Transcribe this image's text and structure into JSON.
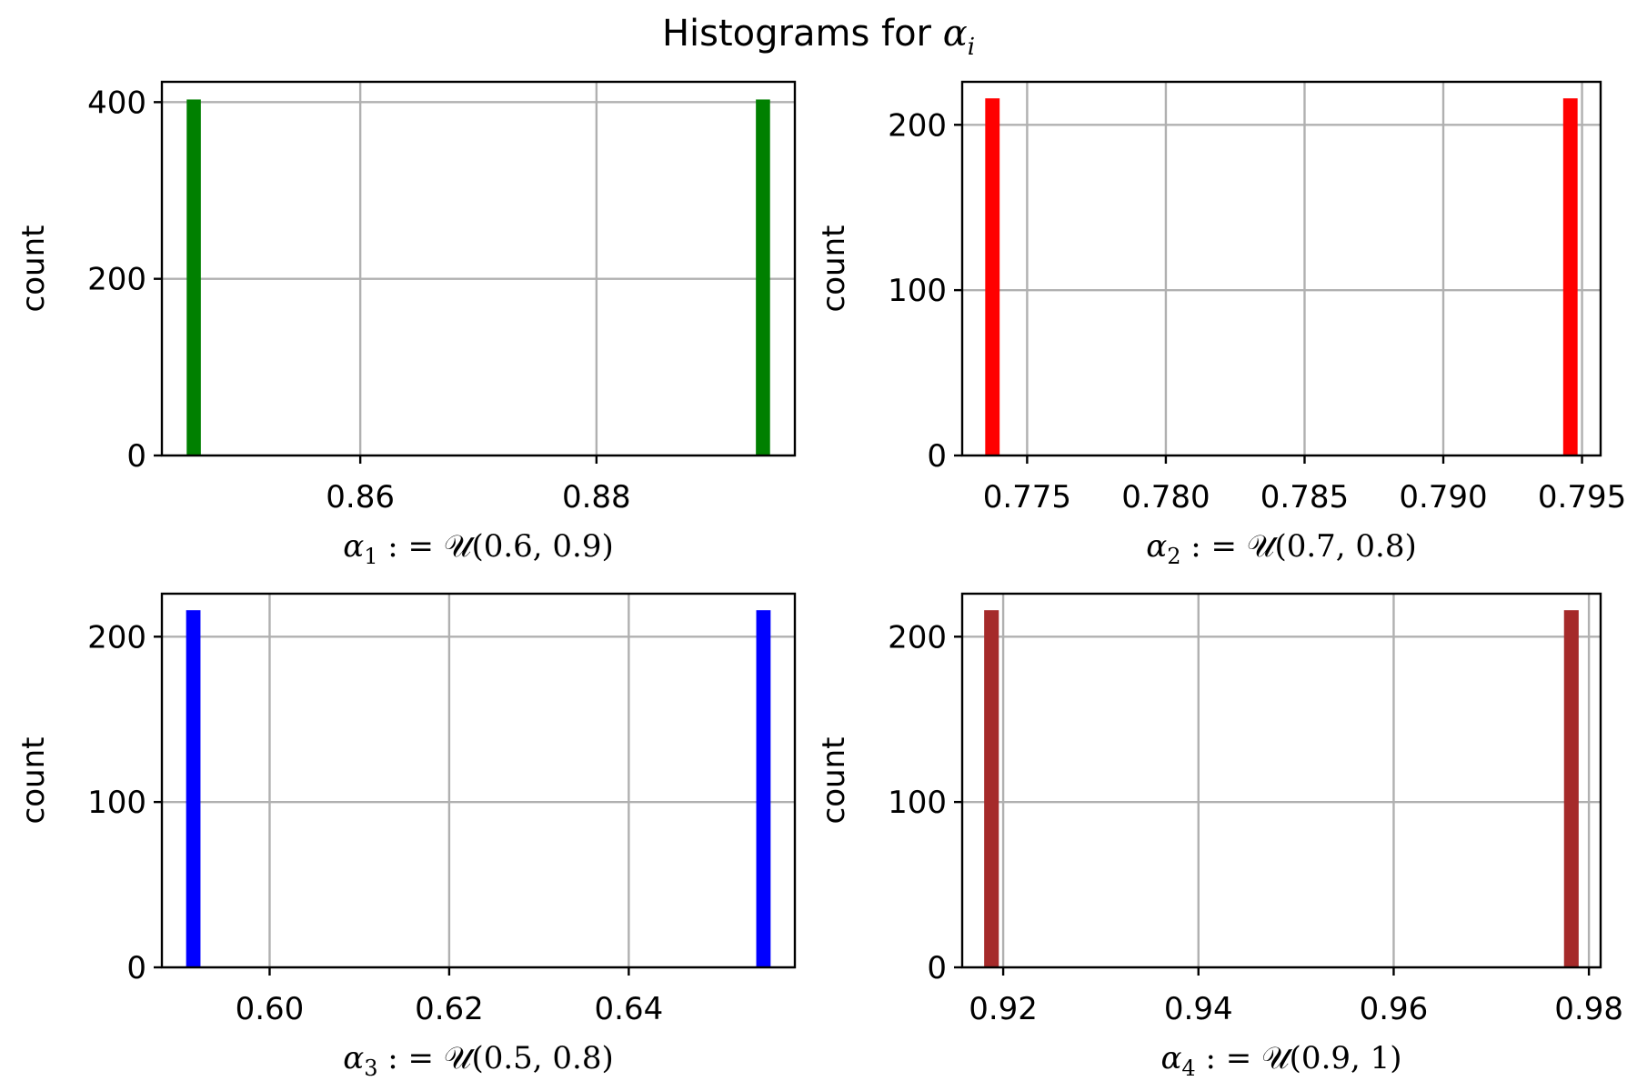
{
  "figure": {
    "title_text": "Histograms for ",
    "title_symbol": "α",
    "title_subscript": "i"
  },
  "chart_data": [
    {
      "type": "bar",
      "color": "#008000",
      "bars": [
        {
          "x": 0.8459,
          "value": 403
        },
        {
          "x": 0.8941,
          "value": 403
        }
      ],
      "bar_width": 0.0012,
      "xlim": [
        0.8432,
        0.8968
      ],
      "ylim": [
        0,
        423
      ],
      "xticks": [
        0.86,
        0.88
      ],
      "xtick_labels": [
        "0.86",
        "0.88"
      ],
      "yticks": [
        0,
        200,
        400
      ],
      "ytick_labels": [
        "0",
        "200",
        "400"
      ],
      "ylabel": "count",
      "xlabel": {
        "sym": "α",
        "sub": "1",
        "rest": " : = 𝒰(0.6, 0.9)"
      }
    },
    {
      "type": "bar",
      "color": "#ff0000",
      "bars": [
        {
          "x": 0.77375,
          "value": 216
        },
        {
          "x": 0.79458,
          "value": 216
        }
      ],
      "bar_width": 0.00052,
      "xlim": [
        0.77266,
        0.79567
      ],
      "ylim": [
        0,
        226
      ],
      "xticks": [
        0.775,
        0.78,
        0.785,
        0.79,
        0.795
      ],
      "xtick_labels": [
        "0.775",
        "0.780",
        "0.785",
        "0.790",
        "0.795"
      ],
      "yticks": [
        0,
        100,
        200
      ],
      "ytick_labels": [
        "0",
        "100",
        "200"
      ],
      "ylabel": "count",
      "xlabel": {
        "sym": "α",
        "sub": "2",
        "rest": " : = 𝒰(0.7, 0.8)"
      }
    },
    {
      "type": "bar",
      "color": "#0000ff",
      "bars": [
        {
          "x": 0.5915,
          "value": 216
        },
        {
          "x": 0.655,
          "value": 216
        }
      ],
      "bar_width": 0.0016,
      "xlim": [
        0.588,
        0.6585
      ],
      "ylim": [
        0,
        226
      ],
      "xticks": [
        0.6,
        0.62,
        0.64
      ],
      "xtick_labels": [
        "0.60",
        "0.62",
        "0.64"
      ],
      "yticks": [
        0,
        100,
        200
      ],
      "ytick_labels": [
        "0",
        "100",
        "200"
      ],
      "ylabel": "count",
      "xlabel": {
        "sym": "α",
        "sub": "3",
        "rest": " : = 𝒰(0.5, 0.8)"
      }
    },
    {
      "type": "bar",
      "color": "#a52a2a",
      "bars": [
        {
          "x": 0.9188,
          "value": 216
        },
        {
          "x": 0.9782,
          "value": 216
        }
      ],
      "bar_width": 0.0015,
      "xlim": [
        0.9158,
        0.9812
      ],
      "ylim": [
        0,
        226
      ],
      "xticks": [
        0.92,
        0.94,
        0.96,
        0.98
      ],
      "xtick_labels": [
        "0.92",
        "0.94",
        "0.96",
        "0.98"
      ],
      "yticks": [
        0,
        100,
        200
      ],
      "ytick_labels": [
        "0",
        "100",
        "200"
      ],
      "ylabel": "count",
      "xlabel": {
        "sym": "α",
        "sub": "4",
        "rest": " : = 𝒰(0.9, 1)"
      }
    }
  ]
}
